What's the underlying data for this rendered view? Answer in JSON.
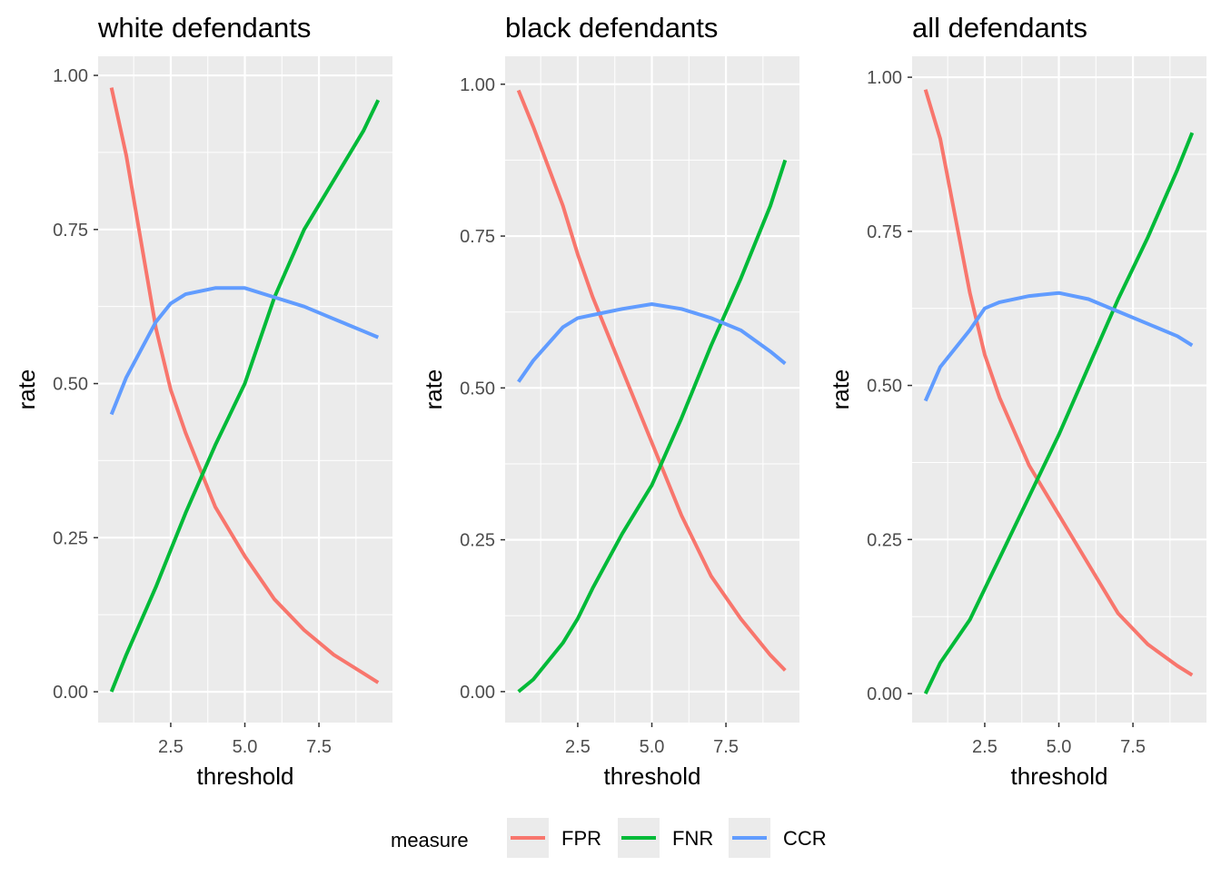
{
  "chart_data": [
    {
      "type": "line",
      "title": "white defendants",
      "xlabel": "threshold",
      "ylabel": "rate",
      "xlim": [
        0.05,
        9.98
      ],
      "ylim": [
        -0.05,
        1.031
      ],
      "xticks": [
        2.5,
        5.0,
        7.5
      ],
      "xtick_labels": [
        "2.5",
        "5.0",
        "7.5"
      ],
      "yticks": [
        0,
        0.25,
        0.5,
        0.75,
        1.0
      ],
      "ytick_labels": [
        "0.00",
        "0.25",
        "0.50",
        "0.75",
        "1.00"
      ],
      "grid": true,
      "x": [
        0.5,
        1,
        2,
        2.5,
        3,
        4,
        5,
        6,
        7,
        8,
        9,
        9.5
      ],
      "series": [
        {
          "name": "FPR",
          "values": [
            0.98,
            0.87,
            0.59,
            0.49,
            0.42,
            0.3,
            0.22,
            0.15,
            0.1,
            0.06,
            0.03,
            0.015
          ]
        },
        {
          "name": "FNR",
          "values": [
            0.0,
            0.06,
            0.17,
            0.23,
            0.29,
            0.4,
            0.5,
            0.64,
            0.75,
            0.83,
            0.91,
            0.96
          ]
        },
        {
          "name": "CCR",
          "values": [
            0.45,
            0.51,
            0.6,
            0.63,
            0.645,
            0.655,
            0.655,
            0.64,
            0.625,
            0.605,
            0.585,
            0.575
          ]
        }
      ]
    },
    {
      "type": "line",
      "title": "black defendants",
      "xlabel": "threshold",
      "ylabel": "rate",
      "xlim": [
        0.05,
        9.98
      ],
      "ylim": [
        -0.051,
        1.046
      ],
      "xticks": [
        2.5,
        5.0,
        7.5
      ],
      "xtick_labels": [
        "2.5",
        "5.0",
        "7.5"
      ],
      "yticks": [
        0,
        0.25,
        0.5,
        0.75,
        1.0
      ],
      "ytick_labels": [
        "0.00",
        "0.25",
        "0.50",
        "0.75",
        "1.00"
      ],
      "grid": true,
      "x": [
        0.5,
        1,
        2,
        2.5,
        3,
        4,
        5,
        6,
        7,
        8,
        9,
        9.5
      ],
      "series": [
        {
          "name": "FPR",
          "values": [
            0.99,
            0.93,
            0.8,
            0.72,
            0.65,
            0.53,
            0.41,
            0.29,
            0.19,
            0.12,
            0.06,
            0.035
          ]
        },
        {
          "name": "FNR",
          "values": [
            0.0,
            0.02,
            0.08,
            0.12,
            0.17,
            0.26,
            0.34,
            0.45,
            0.57,
            0.68,
            0.8,
            0.875
          ]
        },
        {
          "name": "CCR",
          "values": [
            0.51,
            0.545,
            0.6,
            0.615,
            0.62,
            0.63,
            0.638,
            0.63,
            0.615,
            0.595,
            0.56,
            0.54
          ]
        }
      ]
    },
    {
      "type": "line",
      "title": "all defendants",
      "xlabel": "threshold",
      "ylabel": "rate",
      "xlim": [
        0.05,
        9.98
      ],
      "ylim": [
        -0.047,
        1.034
      ],
      "xticks": [
        2.5,
        5.0,
        7.5
      ],
      "xtick_labels": [
        "2.5",
        "5.0",
        "7.5"
      ],
      "yticks": [
        0,
        0.25,
        0.5,
        0.75,
        1.0
      ],
      "ytick_labels": [
        "0.00",
        "0.25",
        "0.50",
        "0.75",
        "1.00"
      ],
      "grid": true,
      "x": [
        0.5,
        1,
        2,
        2.5,
        3,
        4,
        5,
        6,
        7,
        8,
        9,
        9.5
      ],
      "series": [
        {
          "name": "FPR",
          "values": [
            0.98,
            0.9,
            0.65,
            0.55,
            0.48,
            0.37,
            0.29,
            0.21,
            0.13,
            0.08,
            0.045,
            0.03
          ]
        },
        {
          "name": "FNR",
          "values": [
            0.0,
            0.05,
            0.12,
            0.17,
            0.22,
            0.32,
            0.42,
            0.53,
            0.64,
            0.74,
            0.85,
            0.91
          ]
        },
        {
          "name": "CCR",
          "values": [
            0.475,
            0.53,
            0.59,
            0.625,
            0.635,
            0.645,
            0.65,
            0.64,
            0.62,
            0.6,
            0.58,
            0.565
          ]
        }
      ]
    }
  ],
  "legend": {
    "title": "measure",
    "placement": "bottom",
    "items": [
      {
        "label": "FPR",
        "color": "#F8766D"
      },
      {
        "label": "FNR",
        "color": "#00BA38"
      },
      {
        "label": "CCR",
        "color": "#619CFF"
      }
    ]
  },
  "colors": {
    "panel_bg": "#EBEBEB",
    "grid": "#FFFFFF"
  }
}
